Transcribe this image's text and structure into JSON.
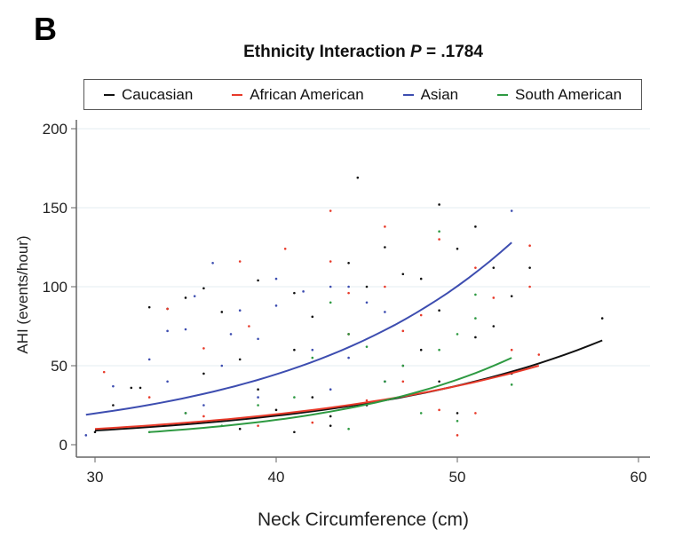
{
  "panel_label": "B",
  "chart_data": {
    "type": "scatter",
    "title": "Ethnicity Interaction P = .1784",
    "title_prefix": "Ethnicity Interaction ",
    "title_italic": "P",
    "title_suffix": " = .1784",
    "xlabel": "Neck Circumference (cm)",
    "ylabel": "AHI (events/hour)",
    "xlim": [
      29,
      60.7
    ],
    "ylim": [
      -5,
      205
    ],
    "xticks": [
      30,
      40,
      50,
      60
    ],
    "yticks": [
      0,
      50,
      100,
      150,
      200
    ],
    "grid": "horizontal",
    "legend": "top",
    "series": [
      {
        "name": "Caucasian",
        "color": "#111111",
        "fit": {
          "x0": 30,
          "x1": 58,
          "y0": 9,
          "y1": 66
        },
        "points": [
          [
            30,
            8
          ],
          [
            31,
            25
          ],
          [
            32,
            36
          ],
          [
            32.5,
            36
          ],
          [
            33,
            87
          ],
          [
            34,
            86
          ],
          [
            35,
            93
          ],
          [
            36,
            99
          ],
          [
            37,
            84
          ],
          [
            38,
            54
          ],
          [
            39,
            104
          ],
          [
            41,
            96
          ],
          [
            42,
            81
          ],
          [
            44,
            115
          ],
          [
            44.5,
            169
          ],
          [
            45,
            100
          ],
          [
            46,
            125
          ],
          [
            47,
            108
          ],
          [
            48,
            105
          ],
          [
            49,
            152
          ],
          [
            49,
            85
          ],
          [
            50,
            124
          ],
          [
            51,
            138
          ],
          [
            51,
            68
          ],
          [
            52,
            112
          ],
          [
            53,
            94
          ],
          [
            54,
            112
          ],
          [
            58,
            80
          ],
          [
            35,
            20
          ],
          [
            37,
            15
          ],
          [
            40,
            22
          ],
          [
            42,
            30
          ],
          [
            43,
            12
          ],
          [
            46,
            40
          ],
          [
            48,
            60
          ],
          [
            50,
            20
          ],
          [
            36,
            45
          ],
          [
            39,
            35
          ],
          [
            41,
            60
          ],
          [
            44,
            70
          ],
          [
            47,
            50
          ],
          [
            45,
            25
          ],
          [
            38,
            10
          ],
          [
            41,
            8
          ],
          [
            43,
            18
          ],
          [
            49,
            40
          ],
          [
            52,
            75
          ],
          [
            53,
            45
          ]
        ]
      },
      {
        "name": "African American",
        "color": "#e83a2a",
        "fit": {
          "x0": 30,
          "x1": 54.5,
          "y0": 10,
          "y1": 50
        },
        "points": [
          [
            30.5,
            46
          ],
          [
            33,
            30
          ],
          [
            34,
            86
          ],
          [
            36,
            61
          ],
          [
            38,
            116
          ],
          [
            38.5,
            75
          ],
          [
            40.5,
            124
          ],
          [
            43,
            148
          ],
          [
            43,
            116
          ],
          [
            44,
            96
          ],
          [
            46,
            100
          ],
          [
            46,
            138
          ],
          [
            47,
            72
          ],
          [
            48,
            82
          ],
          [
            49,
            130
          ],
          [
            51,
            112
          ],
          [
            52,
            93
          ],
          [
            54,
            126
          ],
          [
            54,
            100
          ],
          [
            54.5,
            57
          ],
          [
            51,
            20
          ],
          [
            50,
            6
          ],
          [
            47,
            40
          ],
          [
            45,
            28
          ],
          [
            42,
            14
          ],
          [
            39,
            12
          ],
          [
            36,
            18
          ],
          [
            53,
            60
          ],
          [
            49,
            22
          ],
          [
            44,
            70
          ]
        ]
      },
      {
        "name": "Asian",
        "color": "#3d4db0",
        "fit": {
          "x0": 29.5,
          "x1": 53,
          "y0": 19,
          "y1": 128
        },
        "points": [
          [
            29.5,
            6
          ],
          [
            31,
            37
          ],
          [
            33,
            54
          ],
          [
            34,
            72
          ],
          [
            35,
            73
          ],
          [
            35.5,
            94
          ],
          [
            36.5,
            115
          ],
          [
            37.5,
            70
          ],
          [
            38,
            85
          ],
          [
            39,
            67
          ],
          [
            40,
            105
          ],
          [
            40,
            88
          ],
          [
            41.5,
            97
          ],
          [
            43,
            100
          ],
          [
            44,
            100
          ],
          [
            45,
            90
          ],
          [
            46,
            84
          ],
          [
            53,
            148
          ],
          [
            34,
            40
          ],
          [
            37,
            50
          ],
          [
            39,
            30
          ],
          [
            42,
            60
          ],
          [
            44,
            55
          ],
          [
            46,
            40
          ],
          [
            36,
            25
          ],
          [
            41,
            20
          ],
          [
            43,
            35
          ]
        ]
      },
      {
        "name": "South American",
        "color": "#2e9a42",
        "fit": {
          "x0": 33,
          "x1": 53,
          "y0": 8,
          "y1": 55
        },
        "points": [
          [
            33,
            8
          ],
          [
            35,
            20
          ],
          [
            37,
            12
          ],
          [
            39,
            25
          ],
          [
            41,
            30
          ],
          [
            42,
            55
          ],
          [
            43,
            90
          ],
          [
            44,
            70
          ],
          [
            45,
            62
          ],
          [
            46,
            40
          ],
          [
            47,
            50
          ],
          [
            49,
            135
          ],
          [
            49,
            60
          ],
          [
            50,
            70
          ],
          [
            51,
            80
          ],
          [
            51,
            95
          ],
          [
            53,
            38
          ],
          [
            50,
            15
          ],
          [
            48,
            20
          ],
          [
            44,
            10
          ]
        ]
      }
    ]
  }
}
